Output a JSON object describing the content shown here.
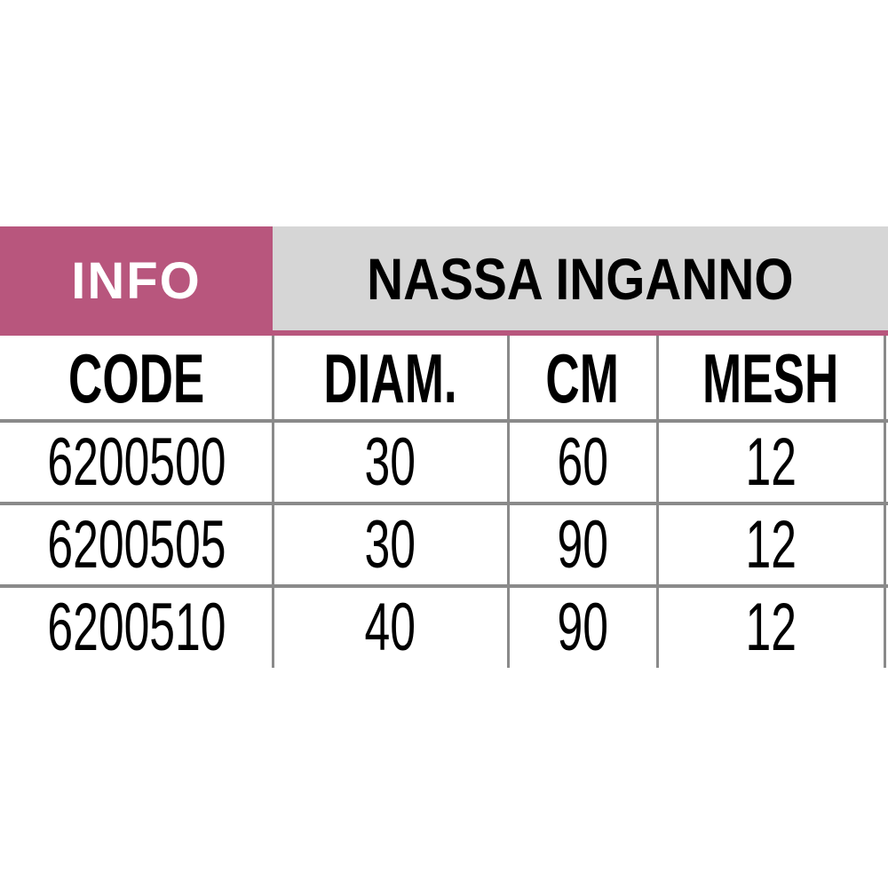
{
  "header": {
    "label": "INFO",
    "title": "NASSA INGANNO"
  },
  "colors": {
    "accent": "#b8567d",
    "title_bg": "#d6d6d6",
    "grid": "#8a8a8a"
  },
  "table": {
    "columns": [
      "CODE",
      "DIAM.",
      "CM",
      "MESH"
    ],
    "rows": [
      [
        "6200500",
        "30",
        "60",
        "12"
      ],
      [
        "6200505",
        "30",
        "90",
        "12"
      ],
      [
        "6200510",
        "40",
        "90",
        "12"
      ]
    ]
  }
}
